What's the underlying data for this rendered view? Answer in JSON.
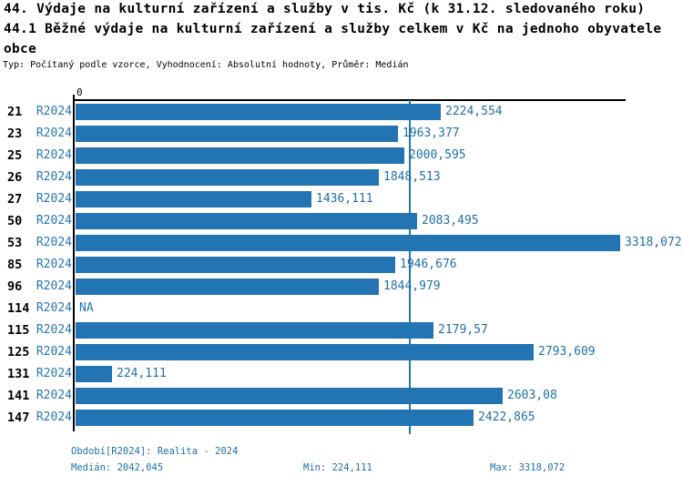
{
  "header": {
    "title_line1": "44. Výdaje na kulturní zařízení a služby v tis. Kč (k 31.12. sledovaného roku)",
    "title_line2": "44.1 Běžné výdaje na kulturní zařízení a služby celkem v Kč na jednoho obyvatele",
    "title_line3": "obce",
    "subtitle": "Typ: Počítaný podle vzorce, Vyhodnocení: Absolutní hodnoty, Průměr: Medián"
  },
  "chart_data": {
    "type": "bar",
    "orientation": "horizontal",
    "axis_zero_label": "0",
    "series_name": "R2024",
    "categories": [
      "21",
      "23",
      "25",
      "26",
      "27",
      "50",
      "53",
      "85",
      "96",
      "114",
      "115",
      "125",
      "131",
      "141",
      "147"
    ],
    "values": [
      2224.554,
      1963.377,
      2000.595,
      1848.513,
      1436.111,
      2083.495,
      3318.072,
      1946.676,
      1844.979,
      null,
      2179.57,
      2793.609,
      224.111,
      2603.08,
      2422.865
    ],
    "value_labels": [
      "2224,554",
      "1963,377",
      "2000,595",
      "1848,513",
      "1436,111",
      "2083,495",
      "3318,072",
      "1946,676",
      "1844,979",
      "NA",
      "2179,57",
      "2793,609",
      "224,111",
      "2603,08",
      "2422,865"
    ],
    "median": 2042.045,
    "min": 224.111,
    "max": 3318.072,
    "xlim": [
      0,
      3357
    ],
    "grid": false,
    "legend_position": "none",
    "colors": {
      "bar": "#2374b2",
      "median_line": "#2374b2",
      "axis": "#000000",
      "series_text": "#2577b5",
      "value_text": "#1f6fa8",
      "footer_text": "#1d6fa5"
    }
  },
  "footer": {
    "period": "Období[R2024]: Realita - 2024",
    "median": "Medián: 2042,045",
    "min": "Min: 224,111",
    "max": "Max: 3318,072"
  }
}
